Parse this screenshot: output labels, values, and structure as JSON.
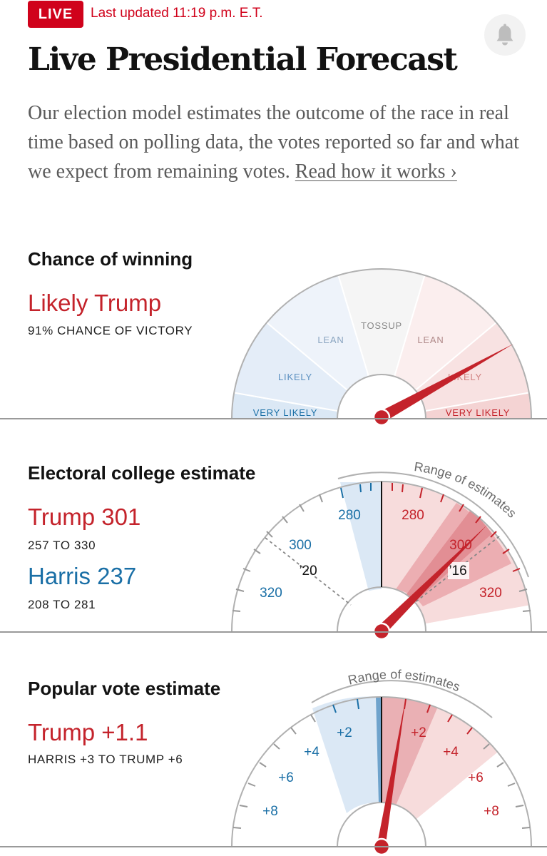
{
  "header": {
    "live_label": "LIVE",
    "updated": "Last updated 11:19 p.m. E.T.",
    "bell_icon": "bell-icon"
  },
  "title": "Live Presidential Forecast",
  "intro": {
    "text": "Our election model estimates the outcome of the race in real time based on polling data, the votes reported so far and what we expect from remaining votes.",
    "link": "Read how it works ›"
  },
  "chance": {
    "title": "Chance of winning",
    "headline": "Likely Trump",
    "sub": "91% CHANCE OF VICTORY",
    "win_probability": 0.91,
    "segments": [
      "VERY LIKELY",
      "LIKELY",
      "LEAN",
      "TOSSUP",
      "LEAN",
      "LIKELY",
      "VERY LIKELY"
    ],
    "colors": {
      "dem": "#1a6fa6",
      "rep": "#c4232b"
    }
  },
  "electoral": {
    "title": "Electoral college estimate",
    "trump_label": "Trump 301",
    "trump_range": "257 TO 330",
    "harris_label": "Harris 237",
    "harris_range": "208 TO 281",
    "range_label": "Range of estimates",
    "trump_ticks": [
      "280",
      "300",
      "320"
    ],
    "harris_ticks": [
      "280",
      "300",
      "320"
    ],
    "ref_2020": "’20",
    "ref_2016": "’16"
  },
  "popular": {
    "title": "Popular vote estimate",
    "headline": "Trump +1.1",
    "sub": "HARRIS +3 TO TRUMP +6",
    "range_label": "Range of estimates",
    "trump_ticks": [
      "+2",
      "+4",
      "+6",
      "+8"
    ],
    "harris_ticks": [
      "+2",
      "+4",
      "+6",
      "+8"
    ]
  }
}
